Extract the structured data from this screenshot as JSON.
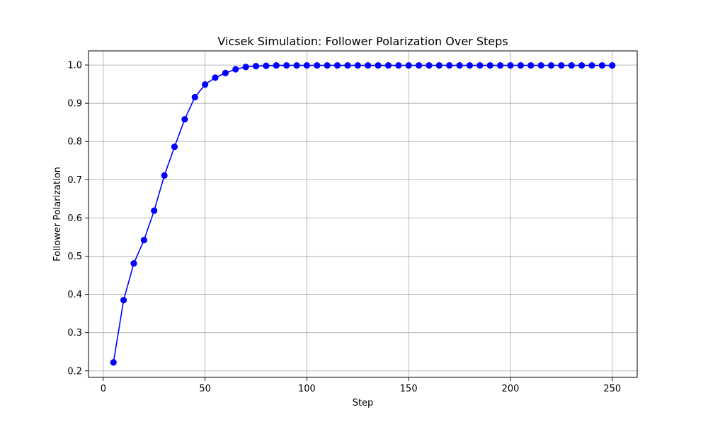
{
  "chart_data": {
    "type": "line",
    "title": "Vicsek Simulation: Follower Polarization Over Steps",
    "xlabel": "Step",
    "ylabel": "Follower Polarization",
    "xlim": [
      -7.25,
      262.25
    ],
    "ylim": [
      0.183,
      1.037
    ],
    "xticks": [
      0,
      50,
      100,
      150,
      200,
      250
    ],
    "xtick_labels": [
      "0",
      "50",
      "100",
      "150",
      "200",
      "250"
    ],
    "yticks": [
      0.2,
      0.3,
      0.4,
      0.5,
      0.6,
      0.7,
      0.8,
      0.9,
      1.0
    ],
    "ytick_labels": [
      "0.2",
      "0.3",
      "0.4",
      "0.5",
      "0.6",
      "0.7",
      "0.8",
      "0.9",
      "1.0"
    ],
    "grid": true,
    "series": [
      {
        "color": "#0000ff",
        "marker": "circle",
        "x": [
          5,
          10,
          15,
          20,
          25,
          30,
          35,
          40,
          45,
          50,
          55,
          60,
          65,
          70,
          75,
          80,
          85,
          90,
          95,
          100,
          105,
          110,
          115,
          120,
          125,
          130,
          135,
          140,
          145,
          150,
          155,
          160,
          165,
          170,
          175,
          180,
          185,
          190,
          195,
          200,
          205,
          210,
          215,
          220,
          225,
          230,
          235,
          240,
          245,
          250
        ],
        "y": [
          0.222,
          0.385,
          0.481,
          0.542,
          0.619,
          0.711,
          0.786,
          0.858,
          0.916,
          0.949,
          0.967,
          0.979,
          0.989,
          0.995,
          0.997,
          0.998,
          0.999,
          0.999,
          0.999,
          0.999,
          0.999,
          0.999,
          0.999,
          0.999,
          0.999,
          0.999,
          0.999,
          0.999,
          0.999,
          0.999,
          0.999,
          0.999,
          0.999,
          0.999,
          0.999,
          0.999,
          0.999,
          0.999,
          0.999,
          0.999,
          0.999,
          0.999,
          0.999,
          0.999,
          0.999,
          0.999,
          0.999,
          0.999,
          0.999,
          0.999
        ]
      }
    ]
  }
}
